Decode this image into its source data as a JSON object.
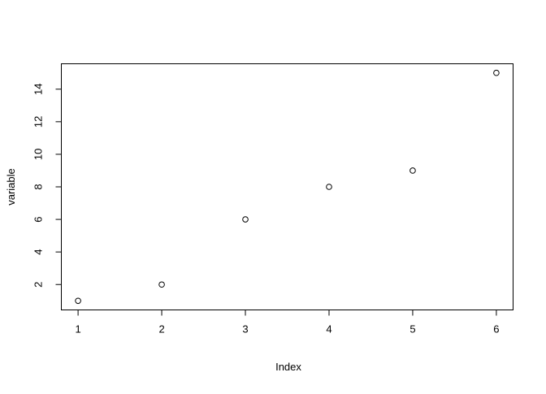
{
  "chart_data": {
    "type": "scatter",
    "title": "",
    "xlabel": "Index",
    "ylabel": "variable",
    "x": [
      1,
      2,
      3,
      4,
      5,
      6
    ],
    "y": [
      1,
      2,
      6,
      8,
      9,
      15
    ],
    "xlim": [
      0.8,
      6.2
    ],
    "ylim": [
      0.44,
      15.56
    ],
    "xticks": [
      "1",
      "2",
      "3",
      "4",
      "5",
      "6"
    ],
    "yticks": [
      "2",
      "4",
      "6",
      "8",
      "10",
      "12",
      "14"
    ],
    "grid": false,
    "marker": "open-circle",
    "colors": {
      "points": "#000000",
      "axes": "#000000",
      "background": "#ffffff"
    }
  }
}
